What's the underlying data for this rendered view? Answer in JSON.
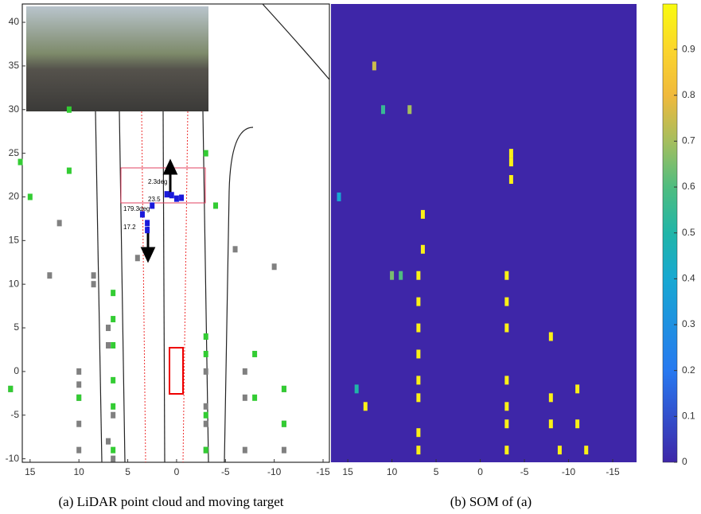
{
  "chart_data": [
    {
      "type": "scatter",
      "caption": "(a) LiDAR point cloud and moving target",
      "xlim": [
        15.8,
        -15.65
      ],
      "ylim": [
        -10.4,
        42.1
      ],
      "xticks": [
        15,
        10,
        5,
        0,
        -5,
        -10,
        -15
      ],
      "yticks": [
        -10,
        -5,
        0,
        5,
        10,
        15,
        20,
        25,
        30,
        35,
        40
      ],
      "annotations": [
        "2.3deg",
        "23.5",
        "179.3deg",
        "17.2"
      ],
      "series": [
        {
          "color": "#808080",
          "x": [
            10,
            10,
            10,
            10,
            10,
            8.5,
            8.5,
            7,
            7,
            7,
            6.5,
            6.5,
            -3,
            -3,
            -3,
            -3,
            -7,
            -7,
            -7,
            -11,
            -11,
            -11,
            17,
            13,
            12,
            4,
            -6,
            -10
          ],
          "y": [
            -9,
            -6,
            -3,
            0,
            -1.5,
            10,
            11,
            5,
            3,
            -8,
            -5,
            -10,
            -6,
            -4,
            -9,
            0,
            0,
            -3,
            -9,
            -2,
            -6,
            -9,
            -2,
            11,
            17,
            13,
            14,
            12
          ]
        },
        {
          "color": "#33cc33",
          "x": [
            6.5,
            6.5,
            6.5,
            6.5,
            6.5,
            6.5,
            10,
            -3,
            -3,
            -3,
            -3,
            -8,
            -8,
            -11,
            -11,
            17,
            11,
            -3,
            -4,
            11,
            16,
            15
          ],
          "y": [
            -9,
            -4,
            -1,
            3,
            6,
            9,
            -3,
            -9,
            -5,
            2,
            4,
            2,
            -3,
            -2,
            -6,
            -2,
            23,
            25,
            19,
            30,
            24,
            20
          ]
        },
        {
          "color": "#1a1adb",
          "x": [
            0,
            0.5,
            -0.5,
            1,
            3,
            3,
            3.5,
            2.5
          ],
          "y": [
            19.8,
            20.2,
            19.9,
            20.3,
            16.2,
            17,
            18,
            19
          ]
        }
      ]
    },
    {
      "type": "heatmap",
      "caption": "(b) SOM of (a)",
      "xlim": [
        16.9,
        -17.7
      ],
      "ylim": [
        -10.4,
        42.1
      ],
      "xticks": [
        15,
        10,
        5,
        0,
        -5,
        -10,
        -15
      ],
      "colorbar": {
        "clim": [
          0,
          0.999
        ],
        "ticks": [
          0,
          0.1,
          0.2,
          0.3,
          0.4,
          0.5,
          0.6,
          0.7,
          0.8,
          0.9
        ]
      },
      "x": [
        7,
        7,
        7,
        7,
        7,
        7,
        7,
        7,
        -3,
        -3,
        -3,
        -3,
        -3,
        -3,
        -3,
        -8,
        -8,
        -8,
        -9,
        -11,
        -11,
        -12,
        13,
        6.5,
        6.5,
        -3.5,
        -3.5,
        -3.5,
        9,
        10,
        11,
        8,
        14,
        16,
        12
      ],
      "y": [
        -9,
        -7,
        -3,
        -1,
        2,
        5,
        8,
        11,
        -9,
        -6,
        -4,
        -1,
        5,
        8,
        11,
        -6,
        -3,
        4,
        -9,
        -2,
        -6,
        -9,
        -4,
        14,
        18,
        22,
        24,
        25,
        11,
        11,
        30,
        30,
        -2,
        20,
        35
      ],
      "values": [
        0.97,
        0.97,
        0.97,
        0.97,
        0.97,
        0.97,
        0.97,
        0.97,
        0.97,
        0.97,
        0.97,
        0.97,
        0.97,
        0.97,
        0.97,
        0.97,
        0.97,
        0.97,
        0.97,
        0.97,
        0.97,
        0.97,
        0.97,
        0.97,
        0.97,
        0.97,
        0.97,
        0.97,
        0.6,
        0.65,
        0.55,
        0.7,
        0.5,
        0.4,
        0.75
      ]
    }
  ]
}
